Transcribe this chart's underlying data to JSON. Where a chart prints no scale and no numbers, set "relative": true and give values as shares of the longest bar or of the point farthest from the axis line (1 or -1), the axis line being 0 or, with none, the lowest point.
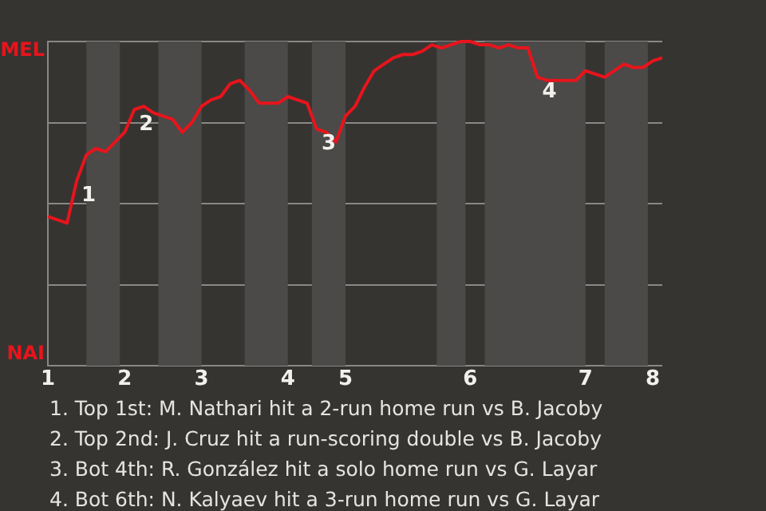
{
  "chart_data": {
    "type": "line",
    "relative": true,
    "categories": [
      "1",
      null,
      null,
      null,
      null,
      null,
      null,
      null,
      "2",
      null,
      null,
      null,
      null,
      null,
      null,
      null,
      "3",
      null,
      null,
      null,
      null,
      null,
      null,
      null,
      null,
      "4",
      null,
      null,
      null,
      null,
      null,
      "5",
      null,
      null,
      null,
      null,
      null,
      null,
      null,
      null,
      null,
      null,
      null,
      null,
      "6",
      null,
      null,
      null,
      null,
      null,
      null,
      null,
      null,
      null,
      null,
      null,
      "7",
      null,
      null,
      null,
      null,
      null,
      null,
      "8",
      null
    ],
    "series": [
      {
        "color": "#e8141c",
        "values": [
          0.46,
          0.45,
          0.44,
          0.57,
          0.65,
          0.67,
          0.66,
          0.69,
          0.72,
          0.79,
          0.8,
          0.78,
          0.77,
          0.76,
          0.72,
          0.75,
          0.8,
          0.82,
          0.83,
          0.87,
          0.88,
          0.85,
          0.81,
          0.81,
          0.81,
          0.83,
          0.82,
          0.81,
          0.73,
          0.72,
          0.69,
          0.77,
          0.8,
          0.86,
          0.91,
          0.93,
          0.95,
          0.96,
          0.96,
          0.97,
          0.99,
          0.98,
          0.99,
          1,
          1,
          0.99,
          0.99,
          0.98,
          0.99,
          0.98,
          0.98,
          0.89,
          0.88,
          0.88,
          0.88,
          0.88,
          0.91,
          0.9,
          0.89,
          0.91,
          0.93,
          0.92,
          0.92,
          0.94,
          0.95
        ]
      }
    ],
    "grid": "y",
    "legend": false,
    "annotations": [
      "MEL",
      "NAI",
      "1",
      "2",
      "3",
      "4",
      "1. Top 1st: M. Nathari hit a 2-run home run vs B. Jacoby",
      "2. Top 2nd: J. Cruz hit a run-scoring double vs B. Jacoby",
      "3. Bot 4th: R. González hit a solo home run vs G. Layar",
      "4. Bot 6th: N. Kalyaev hit a 3-run home run vs G. Layar"
    ]
  }
}
